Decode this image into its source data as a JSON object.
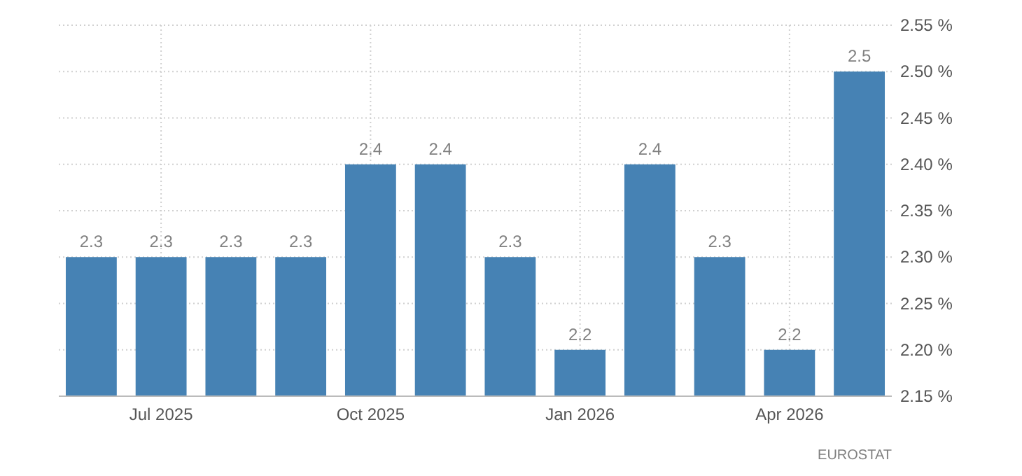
{
  "chart_data": {
    "type": "bar",
    "categories": [
      null,
      "Jul 2025",
      null,
      null,
      "Oct 2025",
      null,
      null,
      "Jan 2026",
      null,
      null,
      "Apr 2026",
      null
    ],
    "values": [
      2.3,
      2.3,
      2.3,
      2.3,
      2.4,
      2.4,
      2.3,
      2.2,
      2.4,
      2.3,
      2.2,
      2.5
    ],
    "color": "#4682b4",
    "ylim": [
      2.15,
      2.55
    ],
    "yticks": [
      {
        "value": 2.15,
        "label": "2.15 %"
      },
      {
        "value": 2.2,
        "label": "2.20 %"
      },
      {
        "value": 2.25,
        "label": "2.25 %"
      },
      {
        "value": 2.3,
        "label": "2.30 %"
      },
      {
        "value": 2.35,
        "label": "2.35 %"
      },
      {
        "value": 2.4,
        "label": "2.40 %"
      },
      {
        "value": 2.45,
        "label": "2.45 %"
      },
      {
        "value": 2.5,
        "label": "2.50 %"
      },
      {
        "value": 2.55,
        "label": "2.55 %"
      }
    ],
    "grid": true,
    "data_labels": true,
    "annotations": [
      "EUROSTAT"
    ]
  }
}
